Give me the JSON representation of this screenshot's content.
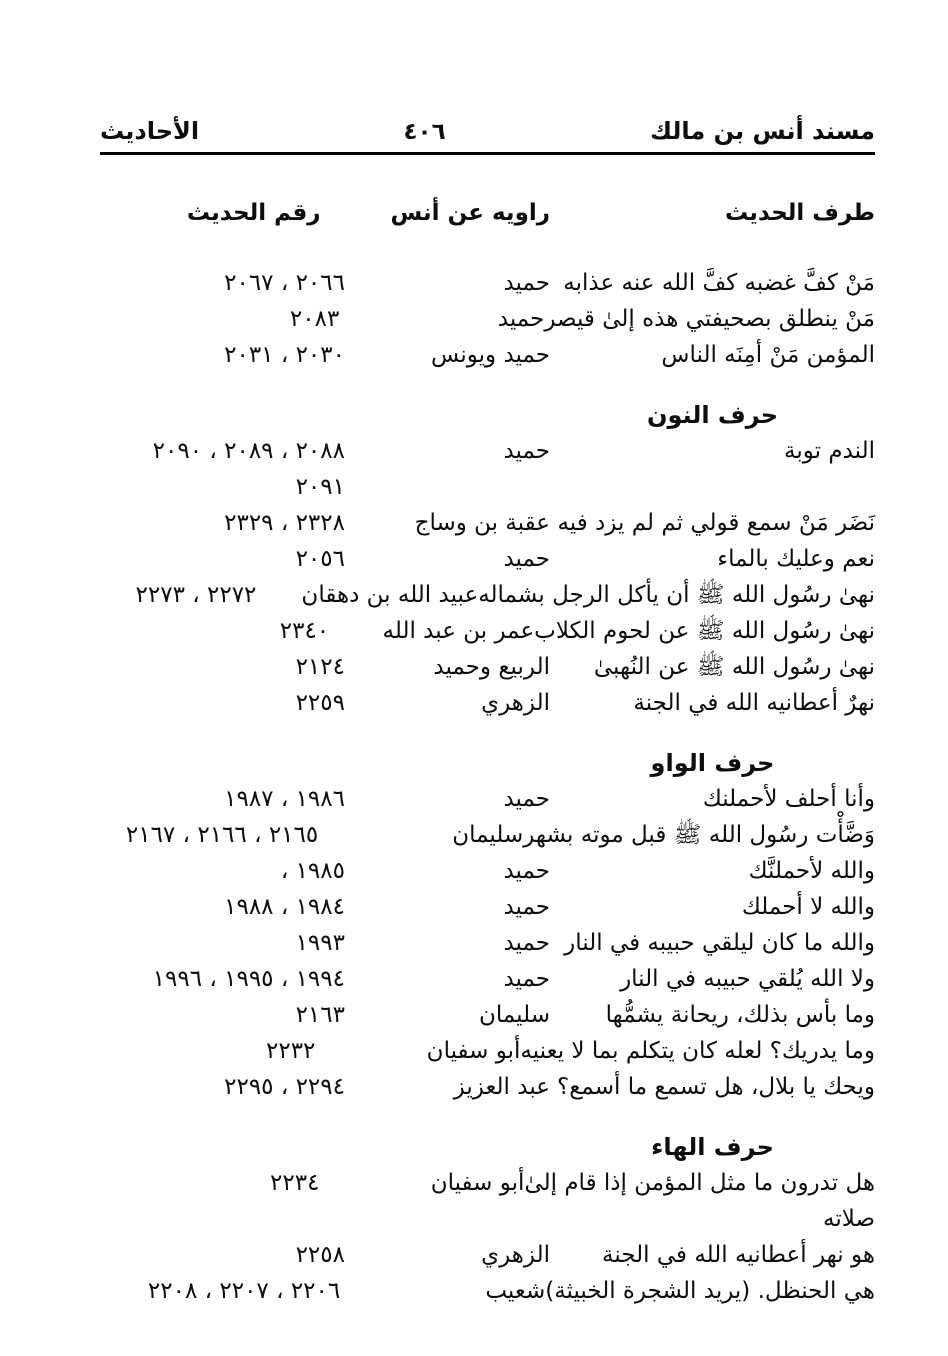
{
  "page_header": {
    "book_title": "مسند أنس بن مالك",
    "page_number": "٤٠٦",
    "section_label": "الأحاديث"
  },
  "table": {
    "columns": {
      "hadith": "طرف الحديث",
      "narrator": "راويه عن أنس",
      "number": "رقم الحديث"
    },
    "sections": [
      {
        "title": "",
        "rows": [
          {
            "hadith": "مَنْ كفَّ غضبه كفَّ الله عنه عذابه",
            "narrator": "حميد",
            "numbers": "٢٠٦٦ ، ٢٠٦٧"
          },
          {
            "hadith": "مَنْ ينطلق بصحيفتي هذه إلىٰ قيصر",
            "narrator": "حميد",
            "numbers": "٢٠٨٣"
          },
          {
            "hadith": "المؤمن مَنْ أمِنَه الناس",
            "narrator": "حميد ويونس",
            "numbers": "٢٠٣٠ ، ٢٠٣١"
          }
        ]
      },
      {
        "title": "حرف النون",
        "rows": [
          {
            "hadith": "الندم توبة",
            "narrator": "حميد",
            "numbers": "٢٠٨٨ ، ٢٠٨٩ ، ٢٠٩٠\n٢٠٩١"
          },
          {
            "hadith": "نَضَر مَنْ سمع قولي ثم لم يزد فيه",
            "narrator": "عقبة بن وساج",
            "numbers": "٢٣٢٨ ، ٢٣٢٩"
          },
          {
            "hadith": "نعم وعليك بالماء",
            "narrator": "حميد",
            "numbers": "٢٠٥٦"
          },
          {
            "hadith": "نهىٰ رسُول الله ﷺ أن يأكل الرجل بشماله",
            "narrator": "عبيد الله بن دهقان",
            "numbers": "٢٢٧٢ ، ٢٢٧٣"
          },
          {
            "hadith": "نهىٰ رسُول الله ﷺ عن لحوم الكلاب",
            "narrator": "عمر بن عبد الله",
            "numbers": "٢٣٤٠"
          },
          {
            "hadith": "نهىٰ رسُول الله ﷺ عن النُهبىٰ",
            "narrator": "الربيع وحميد",
            "numbers": "٢١٢٤"
          },
          {
            "hadith": "نهرٌ أعطانيه الله في الجنة",
            "narrator": "الزهري",
            "numbers": "٢٢٥٩"
          }
        ]
      },
      {
        "title": "حرف الواو",
        "rows": [
          {
            "hadith": "وأنا أحلف لأحملنك",
            "narrator": "حميد",
            "numbers": "١٩٨٦ ، ١٩٨٧"
          },
          {
            "hadith": "وَضَّأْت رسُول الله ﷺ قبل موته بشهر",
            "narrator": "سليمان",
            "numbers": "٢١٦٥ ، ٢١٦٦ ، ٢١٦٧"
          },
          {
            "hadith": "والله لأحملنَّك",
            "narrator": "حميد",
            "numbers": "١٩٨٥ ،"
          },
          {
            "hadith": "والله لا أحملك",
            "narrator": "حميد",
            "numbers": "١٩٨٤ ، ١٩٨٨"
          },
          {
            "hadith": "والله ما كان ليلقي حبيبه في النار",
            "narrator": "حميد",
            "numbers": "١٩٩٣"
          },
          {
            "hadith": "ولا الله يُلقي حبيبه في النار",
            "narrator": "حميد",
            "numbers": "١٩٩٤ ، ١٩٩٥ ، ١٩٩٦"
          },
          {
            "hadith": "وما بأس بذلك، ريحانة يشمُّها",
            "narrator": "سليمان",
            "numbers": "٢١٦٣"
          },
          {
            "hadith": "وما يدريك؟ لعله كان يتكلم بما لا يعنيه",
            "narrator": "أبو سفيان",
            "numbers": "٢٢٣٢"
          },
          {
            "hadith": "ويحك يا بلال، هل تسمع ما أسمع؟",
            "narrator": "عبد العزيز",
            "numbers": "٢٢٩٤ ، ٢٢٩٥"
          }
        ]
      },
      {
        "title": "حرف الهاء",
        "rows": [
          {
            "hadith": "هل تدرون ما مثل المؤمن إذا قام إلىٰ\nصلاته",
            "narrator": "أبو سفيان",
            "numbers": "٢٢٣٤"
          },
          {
            "hadith": "هو نهر أعطانيه الله في الجنة",
            "narrator": "الزهري",
            "numbers": "٢٢٥٨"
          },
          {
            "hadith": "هي الحنظل. (يريد الشجرة الخبيثة)",
            "narrator": "شعيب",
            "numbers": "٢٢٠٦ ، ٢٢٠٧ ، ٢٢٠٨"
          }
        ]
      }
    ]
  }
}
